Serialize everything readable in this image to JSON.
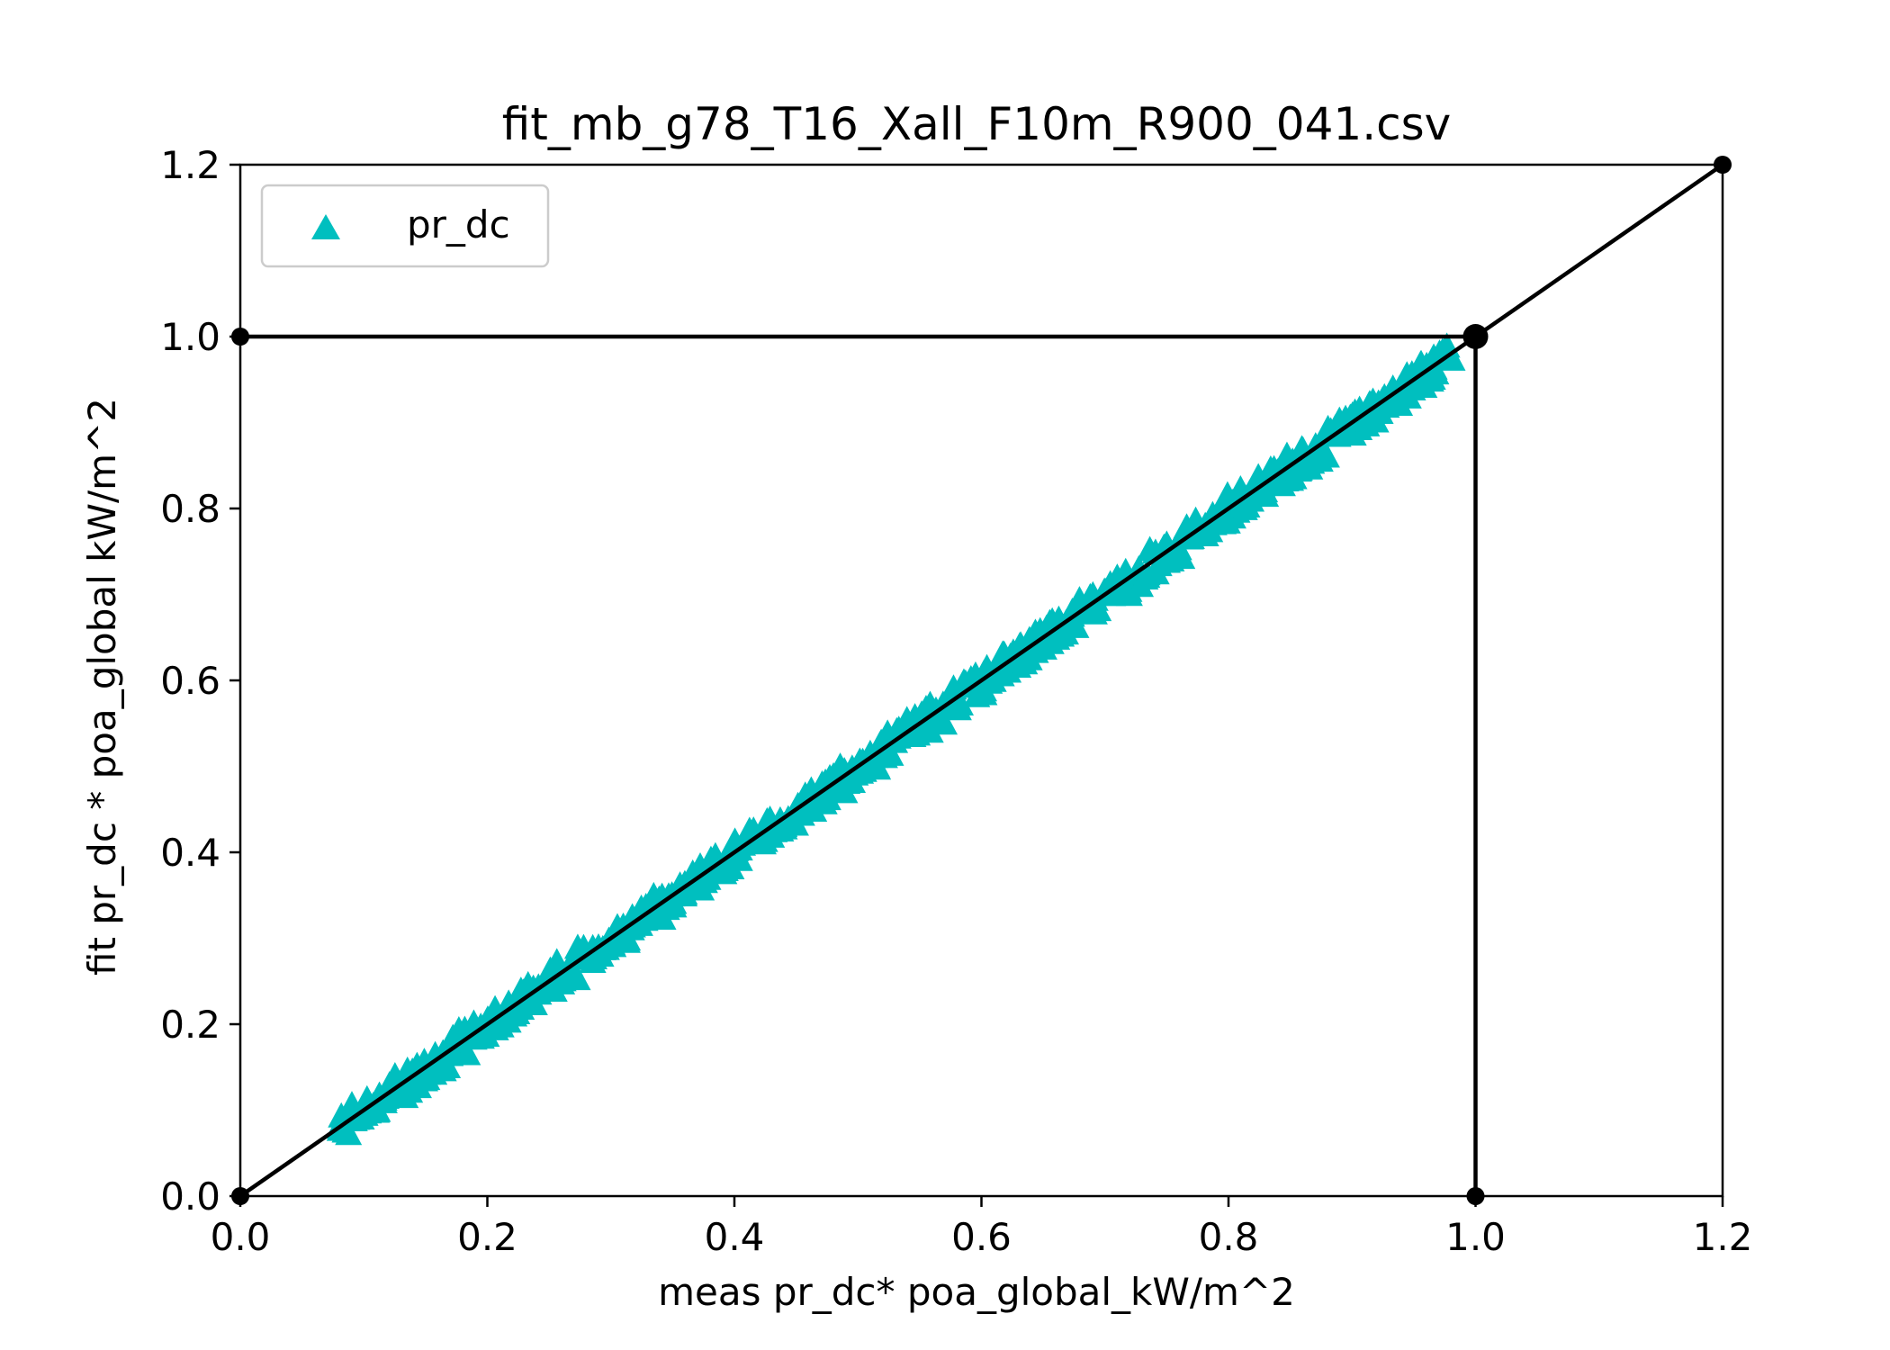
{
  "chart_data": {
    "type": "scatter",
    "title": "fit_mb_g78_T16_Xall_F10m_R900_041.csv",
    "xlabel": "meas pr_dc* poa_global_kW/m^2",
    "ylabel": "fit pr_dc * poa_global kW/m^2",
    "xlim": [
      0.0,
      1.2
    ],
    "ylim": [
      0.0,
      1.2
    ],
    "xticks": [
      "0.0",
      "0.2",
      "0.4",
      "0.6",
      "0.8",
      "1.0",
      "1.2"
    ],
    "yticks": [
      "0.0",
      "0.2",
      "0.4",
      "0.6",
      "0.8",
      "1.0",
      "1.2"
    ],
    "grid": false,
    "legend_position": "top-left",
    "series": [
      {
        "name": "pr_dc",
        "marker": "triangle-up",
        "color": "#00bfbf",
        "x_range": [
          0.08,
          0.98
        ],
        "fit_relation": "y ≈ x",
        "spread": 0.02
      }
    ],
    "reference_lines": [
      {
        "from": [
          0.0,
          0.0
        ],
        "to": [
          1.2,
          1.2
        ],
        "color": "#000000"
      },
      {
        "from": [
          0.0,
          1.0
        ],
        "to": [
          1.0,
          1.0
        ],
        "color": "#000000"
      },
      {
        "from": [
          1.0,
          1.0
        ],
        "to": [
          1.0,
          0.0
        ],
        "color": "#000000"
      }
    ],
    "reference_points": [
      {
        "x": 0.0,
        "y": 0.0
      },
      {
        "x": 0.0,
        "y": 1.0
      },
      {
        "x": 1.0,
        "y": 1.0
      },
      {
        "x": 1.0,
        "y": 0.0
      },
      {
        "x": 1.2,
        "y": 1.2
      }
    ]
  }
}
